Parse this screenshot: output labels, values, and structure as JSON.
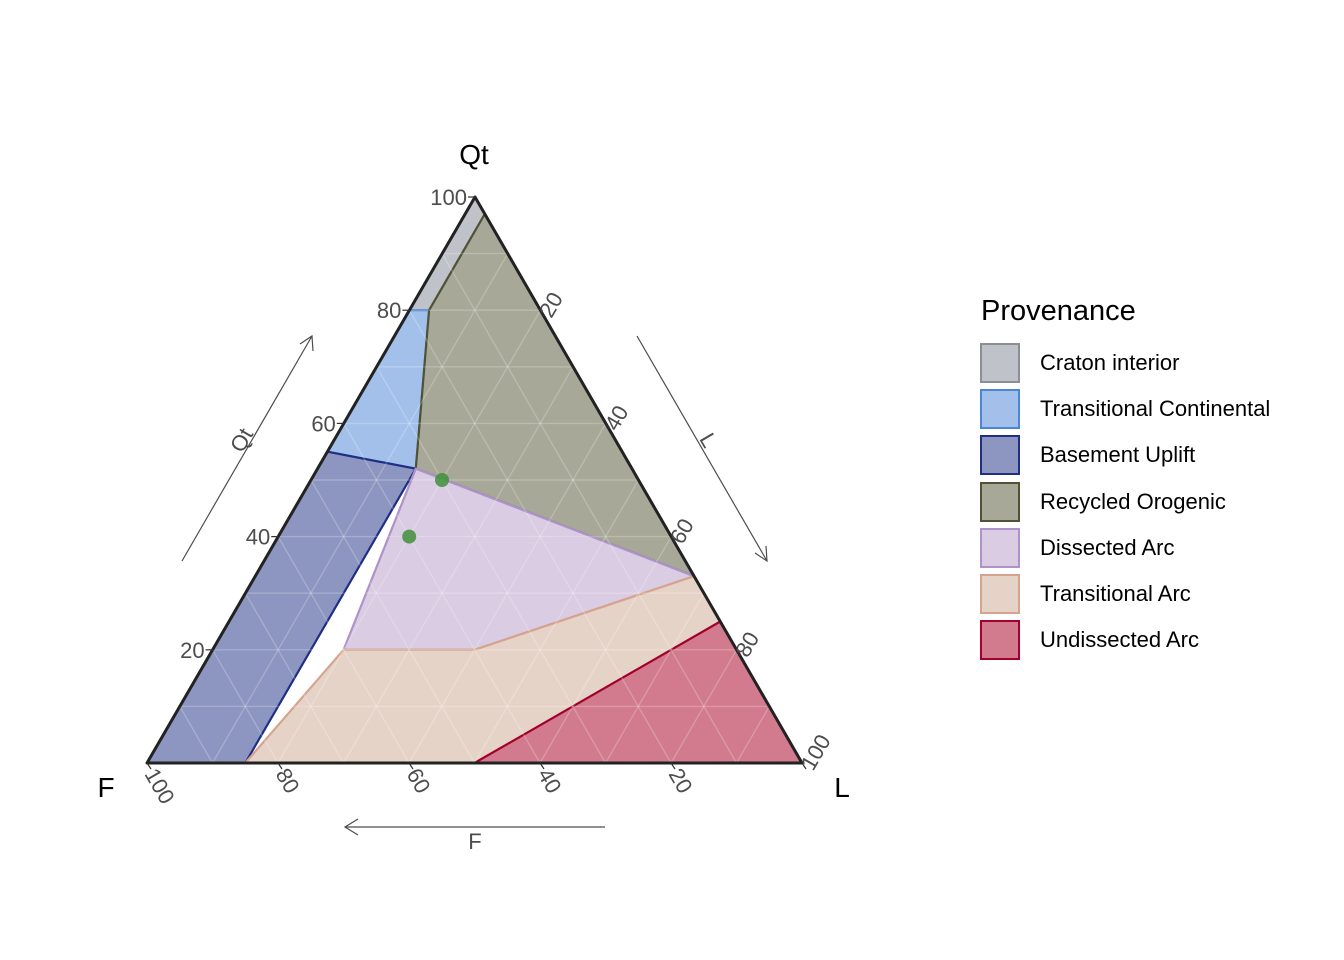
{
  "chart_data": {
    "type": "ternary",
    "vertices": {
      "top": "Qt",
      "left": "F",
      "right": "L"
    },
    "axis_arrow_labels": {
      "qt": "Qt",
      "l": "L",
      "f": "F"
    },
    "ticks": {
      "qt": [
        "20",
        "40",
        "60",
        "80",
        "100"
      ],
      "l": [
        "20",
        "40",
        "60",
        "80",
        "100"
      ],
      "f": [
        "100",
        "80",
        "60",
        "40",
        "20"
      ]
    },
    "legend": {
      "title": "Provenance",
      "position": "right"
    },
    "grid": true,
    "regions": [
      {
        "name": "Craton interior",
        "fill": "#bfc3c9",
        "stroke": "#8a8f96",
        "vertices": [
          [
            100,
            0,
            0
          ],
          [
            80,
            20,
            0
          ],
          [
            80,
            17,
            3
          ],
          [
            97,
            0,
            3
          ]
        ]
      },
      {
        "name": "Transitional Continental",
        "fill": "#a3c0eb",
        "stroke": "#4a85d6",
        "vertices": [
          [
            80,
            20,
            0
          ],
          [
            55,
            45,
            0
          ],
          [
            52,
            33,
            15
          ],
          [
            80,
            17,
            3
          ]
        ]
      },
      {
        "name": "Basement Uplift",
        "fill": "#8d96c0",
        "stroke": "#1e2f85",
        "vertices": [
          [
            55,
            45,
            0
          ],
          [
            0,
            100,
            0
          ],
          [
            0,
            85,
            15
          ],
          [
            52,
            33,
            15
          ]
        ]
      },
      {
        "name": "Recycled Orogenic",
        "fill": "#a7a897",
        "stroke": "#4f5234",
        "vertices": [
          [
            97,
            0,
            3
          ],
          [
            80,
            17,
            3
          ],
          [
            52,
            33,
            15
          ],
          [
            33,
            0,
            67
          ],
          [
            25,
            0,
            75
          ]
        ]
      },
      {
        "name": "Dissected Arc",
        "fill": "#d9cce3",
        "stroke": "#ad93c9",
        "vertices": [
          [
            52,
            33,
            15
          ],
          [
            33,
            0,
            67
          ],
          [
            20,
            40,
            40
          ],
          [
            20,
            60,
            20
          ]
        ]
      },
      {
        "name": "Transitional Arc",
        "fill": "#e6d3c8",
        "stroke": "#d6a48c",
        "vertices": [
          [
            33,
            0,
            67
          ],
          [
            25,
            0,
            75
          ],
          [
            0,
            50,
            50
          ],
          [
            0,
            85,
            15
          ],
          [
            20,
            60,
            20
          ],
          [
            20,
            40,
            40
          ]
        ]
      },
      {
        "name": "Undissected Arc",
        "fill": "#d27b8e",
        "stroke": "#a3002b",
        "vertices": [
          [
            25,
            0,
            75
          ],
          [
            0,
            0,
            100
          ],
          [
            0,
            50,
            50
          ]
        ]
      }
    ],
    "points": [
      {
        "Qt": 50,
        "F": 30,
        "L": 20,
        "color": "#3f8f3a"
      },
      {
        "Qt": 40,
        "F": 40,
        "L": 20,
        "color": "#3f8f3a"
      }
    ]
  }
}
